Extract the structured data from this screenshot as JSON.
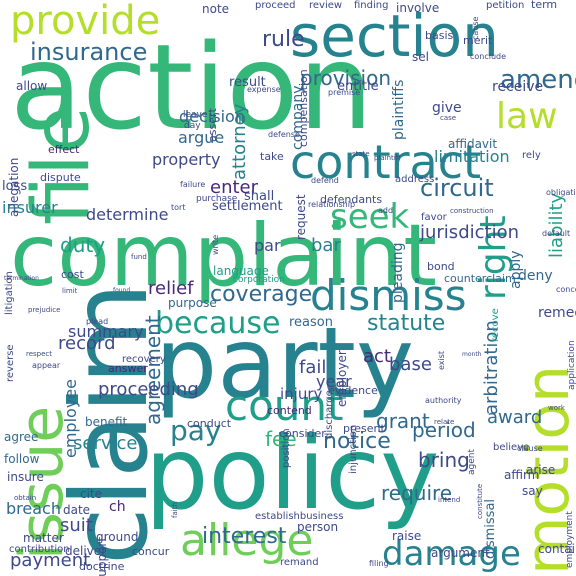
{
  "palette": {
    "bg": "#ffffff",
    "tones": [
      "#440154",
      "#482878",
      "#3e4989",
      "#31688e",
      "#26828e",
      "#1f9e89",
      "#35b779",
      "#6ece58",
      "#b5de2b",
      "#fde725"
    ]
  },
  "words": [
    {
      "text": "action",
      "tone": 6
    },
    {
      "text": "complaint",
      "tone": 6
    },
    {
      "text": "party",
      "tone": 4
    },
    {
      "text": "policy",
      "tone": 5
    },
    {
      "text": "claim",
      "tone": 4
    },
    {
      "text": "section",
      "tone": 4
    },
    {
      "text": "file",
      "tone": 6
    },
    {
      "text": "contract",
      "tone": 4
    },
    {
      "text": "dismiss",
      "tone": 4
    },
    {
      "text": "issue",
      "tone": 7
    },
    {
      "text": "motion",
      "tone": 8
    },
    {
      "text": "provide",
      "tone": 8
    },
    {
      "text": "allege",
      "tone": 7
    },
    {
      "text": "count",
      "tone": 5
    },
    {
      "text": "right",
      "tone": 5
    },
    {
      "text": "law",
      "tone": 8
    },
    {
      "text": "damage",
      "tone": 4
    },
    {
      "text": "because",
      "tone": 5
    },
    {
      "text": "insurance",
      "tone": 3
    },
    {
      "text": "seek",
      "tone": 6
    },
    {
      "text": "amend",
      "tone": 3
    },
    {
      "text": "pay",
      "tone": 4
    },
    {
      "text": "circuit",
      "tone": 3
    },
    {
      "text": "provision",
      "tone": 3
    },
    {
      "text": "rule",
      "tone": 2
    },
    {
      "text": "liability",
      "tone": 5
    },
    {
      "text": "jurisdiction",
      "tone": 2
    },
    {
      "text": "coverage",
      "tone": 3
    },
    {
      "text": "statute",
      "tone": 4
    },
    {
      "text": "interest",
      "tone": 3
    },
    {
      "text": "notice",
      "tone": 3
    },
    {
      "text": "agreement",
      "tone": 3
    },
    {
      "text": "attorney",
      "tone": 4
    },
    {
      "text": "enter",
      "tone": 1
    },
    {
      "text": "duty",
      "tone": 5
    },
    {
      "text": "relief",
      "tone": 1
    },
    {
      "text": "determine",
      "tone": 2
    },
    {
      "text": "insurer",
      "tone": 4
    },
    {
      "text": "seek",
      "tone": 6
    },
    {
      "text": "grant",
      "tone": 3
    },
    {
      "text": "employee",
      "tone": 3
    },
    {
      "text": "fee",
      "tone": 6
    },
    {
      "text": "bring",
      "tone": 2
    },
    {
      "text": "require",
      "tone": 3
    },
    {
      "text": "period",
      "tone": 3
    },
    {
      "text": "proceeding",
      "tone": 2
    },
    {
      "text": "record",
      "tone": 2
    },
    {
      "text": "summary",
      "tone": 2
    },
    {
      "text": "bar",
      "tone": 4
    },
    {
      "text": "par",
      "tone": 2
    },
    {
      "text": "act",
      "tone": 1
    },
    {
      "text": "base",
      "tone": 2
    },
    {
      "text": "fail",
      "tone": 2
    },
    {
      "text": "year",
      "tone": 2
    },
    {
      "text": "breach",
      "tone": 3
    },
    {
      "text": "suit",
      "tone": 2
    },
    {
      "text": "payment",
      "tone": 2
    },
    {
      "text": "service",
      "tone": 4
    },
    {
      "text": "award",
      "tone": 3
    },
    {
      "text": "arbitration",
      "tone": 3
    },
    {
      "text": "limitation",
      "tone": 4
    },
    {
      "text": "decision",
      "tone": 3
    },
    {
      "text": "argue",
      "tone": 3
    },
    {
      "text": "property",
      "tone": 2
    },
    {
      "text": "company",
      "tone": 3
    },
    {
      "text": "plaintiffs",
      "tone": 3
    },
    {
      "text": "receive",
      "tone": 2
    },
    {
      "text": "give",
      "tone": 2
    },
    {
      "text": "affidavit",
      "tone": 3
    },
    {
      "text": "apply",
      "tone": 3
    },
    {
      "text": "deny",
      "tone": 3
    },
    {
      "text": "remedy",
      "tone": 2
    },
    {
      "text": "note",
      "tone": 2
    },
    {
      "text": "review",
      "tone": 2
    },
    {
      "text": "proceed",
      "tone": 2
    },
    {
      "text": "finding",
      "tone": 2
    },
    {
      "text": "involve",
      "tone": 2
    },
    {
      "text": "result",
      "tone": 2
    },
    {
      "text": "entitle",
      "tone": 2
    },
    {
      "text": "sel",
      "tone": 2
    },
    {
      "text": "allegation",
      "tone": 2
    },
    {
      "text": "allow",
      "tone": 2
    },
    {
      "text": "effect",
      "tone": 1
    },
    {
      "text": "loss",
      "tone": 2
    },
    {
      "text": "dispute",
      "tone": 2
    },
    {
      "text": "settlement",
      "tone": 2
    },
    {
      "text": "shall",
      "tone": 2
    },
    {
      "text": "defendants",
      "tone": 2
    },
    {
      "text": "pleading",
      "tone": 3
    },
    {
      "text": "counterclaim",
      "tone": 3
    },
    {
      "text": "injury",
      "tone": 2
    },
    {
      "text": "conduct",
      "tone": 2
    },
    {
      "text": "consider",
      "tone": 2
    },
    {
      "text": "employer",
      "tone": 2
    },
    {
      "text": "reason",
      "tone": 3
    },
    {
      "text": "language",
      "tone": 5
    },
    {
      "text": "purpose",
      "tone": 3
    },
    {
      "text": "benefit",
      "tone": 3
    },
    {
      "text": "agree",
      "tone": 3
    },
    {
      "text": "follow",
      "tone": 3
    },
    {
      "text": "insure",
      "tone": 2
    },
    {
      "text": "matter",
      "tone": 2
    },
    {
      "text": "date",
      "tone": 2
    },
    {
      "text": "cite",
      "tone": 2
    },
    {
      "text": "deliver",
      "tone": 2
    },
    {
      "text": "support",
      "tone": 2
    },
    {
      "text": "ground",
      "tone": 2
    },
    {
      "text": "establishbusiness",
      "tone": 2
    },
    {
      "text": "person",
      "tone": 2
    },
    {
      "text": "raise",
      "tone": 2
    },
    {
      "text": "contain",
      "tone": 2
    },
    {
      "text": "affirm",
      "tone": 2
    },
    {
      "text": "arise",
      "tone": 2
    },
    {
      "text": "say",
      "tone": 2
    },
    {
      "text": "believe",
      "tone": 2
    },
    {
      "text": "compensation",
      "tone": 2
    },
    {
      "text": "answer",
      "tone": 1
    },
    {
      "text": "recovery",
      "tone": 2
    },
    {
      "text": "evidence",
      "tone": 2
    },
    {
      "text": "contend",
      "tone": 1
    },
    {
      "text": "present",
      "tone": 2
    },
    {
      "text": "discharge",
      "tone": 2
    },
    {
      "text": "position",
      "tone": 2
    },
    {
      "text": "reverse",
      "tone": 2
    },
    {
      "text": "litigation",
      "tone": 2
    },
    {
      "text": "dismissal",
      "tone": 3
    },
    {
      "text": "bond",
      "tone": 2
    },
    {
      "text": "address",
      "tone": 2
    },
    {
      "text": "favor",
      "tone": 2
    },
    {
      "text": "take",
      "tone": 2
    },
    {
      "text": "request",
      "tone": 2
    },
    {
      "text": "assert",
      "tone": 2
    },
    {
      "text": "basis",
      "tone": 2
    },
    {
      "text": "merit",
      "tone": 2
    },
    {
      "text": "petition",
      "tone": 2
    },
    {
      "text": "term",
      "tone": 2
    },
    {
      "text": "conclude",
      "tone": 2
    },
    {
      "text": "rely",
      "tone": 2
    },
    {
      "text": "cost",
      "tone": 2
    },
    {
      "text": "concur",
      "tone": 2
    },
    {
      "text": "doctrine",
      "tone": 2
    },
    {
      "text": "contribution",
      "tone": 2
    },
    {
      "text": "remand",
      "tone": 2
    },
    {
      "text": "argument",
      "tone": 2
    },
    {
      "text": "filing",
      "tone": 2
    },
    {
      "text": "injunction",
      "tone": 2
    },
    {
      "text": "employment",
      "tone": 2
    },
    {
      "text": "application",
      "tone": 2
    },
    {
      "text": "agent",
      "tone": 2
    },
    {
      "text": "clause",
      "tone": 2
    },
    {
      "text": "concern",
      "tone": 2
    },
    {
      "text": "purchase",
      "tone": 2
    },
    {
      "text": "failure",
      "tone": 2
    },
    {
      "text": "corporation",
      "tone": 5
    },
    {
      "text": "tort",
      "tone": 2
    },
    {
      "text": "obligation",
      "tone": 2
    },
    {
      "text": "plead",
      "tone": 2
    },
    {
      "text": "write",
      "tone": 2
    },
    {
      "text": "day",
      "tone": 2
    },
    {
      "text": "leave",
      "tone": 2
    },
    {
      "text": "authority",
      "tone": 2
    },
    {
      "text": "exist",
      "tone": 2
    },
    {
      "text": "recove",
      "tone": 5
    },
    {
      "text": "defend",
      "tone": 2
    },
    {
      "text": "relationship",
      "tone": 2
    },
    {
      "text": "add",
      "tone": 2
    },
    {
      "text": "termination",
      "tone": 2
    },
    {
      "text": "expense",
      "tone": 2
    },
    {
      "text": "premise",
      "tone": 2
    },
    {
      "text": "defense",
      "tone": 2
    },
    {
      "text": "default",
      "tone": 2
    },
    {
      "text": "cause",
      "tone": 2
    },
    {
      "text": "construction",
      "tone": 2
    },
    {
      "text": "respect",
      "tone": 2
    },
    {
      "text": "appear",
      "tone": 2
    },
    {
      "text": "prejudice",
      "tone": 2
    },
    {
      "text": "limit",
      "tone": 2
    },
    {
      "text": "found",
      "tone": 2
    },
    {
      "text": "month",
      "tone": 2
    },
    {
      "text": "obtain",
      "tone": 2
    },
    {
      "text": "constitute",
      "tone": 2
    },
    {
      "text": "work",
      "tone": 2
    },
    {
      "text": "faith",
      "tone": 2
    },
    {
      "text": "intend",
      "tone": 2
    },
    {
      "text": "ch",
      "tone": 1
    },
    {
      "text": "case",
      "tone": 2
    },
    {
      "text": "state",
      "tone": 2
    },
    {
      "text": "relate",
      "tone": 2
    },
    {
      "text": "fund",
      "tone": 2
    },
    {
      "text": "plaintiff",
      "tone": 2
    }
  ]
}
